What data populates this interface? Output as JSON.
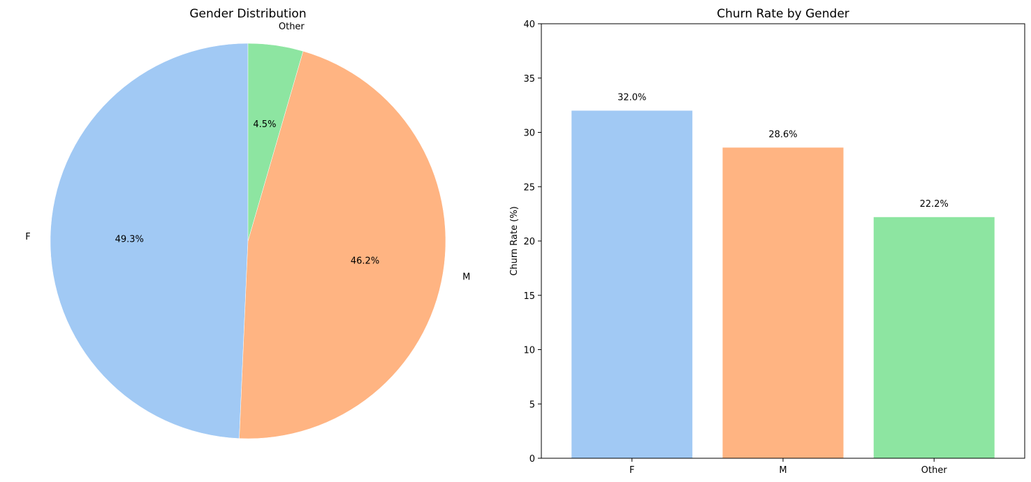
{
  "chart_data": [
    {
      "type": "pie",
      "title": "Gender Distribution",
      "labels": [
        "F",
        "M",
        "Other"
      ],
      "values": [
        49.3,
        46.2,
        4.5
      ],
      "value_labels": [
        "49.3%",
        "46.2%",
        "4.5%"
      ],
      "colors": [
        "#a1c9f4",
        "#ffb482",
        "#8de5a1"
      ],
      "start_angle_deg": 90,
      "direction": "counterclockwise"
    },
    {
      "type": "bar",
      "title": "Churn Rate by Gender",
      "categories": [
        "F",
        "M",
        "Other"
      ],
      "values": [
        32.0,
        28.6,
        22.2
      ],
      "value_labels": [
        "32.0%",
        "28.6%",
        "22.2%"
      ],
      "colors": [
        "#a1c9f4",
        "#ffb482",
        "#8de5a1"
      ],
      "xlabel": "",
      "ylabel": "Churn Rate (%)",
      "ylim": [
        0,
        40
      ],
      "yticks": [
        0,
        5,
        10,
        15,
        20,
        25,
        30,
        35,
        40
      ],
      "grid": false
    }
  ]
}
